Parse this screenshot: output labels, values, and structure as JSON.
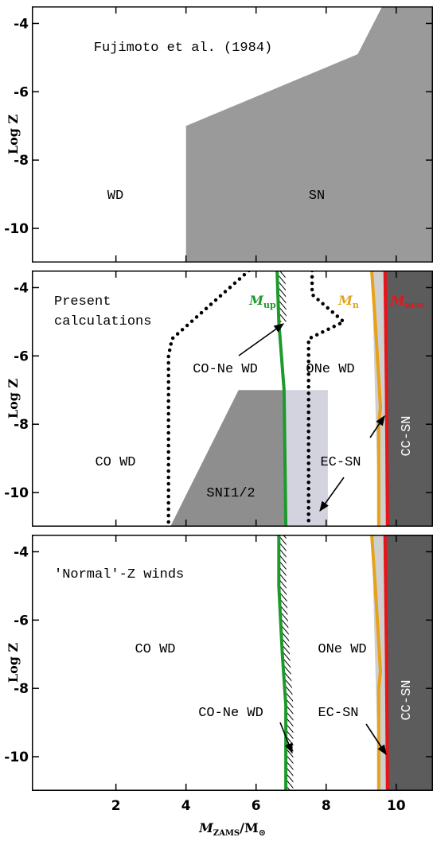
{
  "chart_data": [
    {
      "type": "region",
      "title": "Fujimoto et al. (1984)",
      "ylabel": "Log Z",
      "xlim": [
        -0.4,
        11.05
      ],
      "ylim": [
        -11,
        -3.5
      ],
      "xticks": [
        2,
        4,
        6,
        8,
        10
      ],
      "yticks": [
        -4,
        -6,
        -8,
        -10
      ],
      "xtick_labels": false,
      "regions": [
        {
          "color": "#9a9a9a",
          "x": [
            4,
            4,
            8.9,
            9.6,
            11.05,
            11.05
          ],
          "y": [
            -11,
            -7,
            -4.9,
            -3.5,
            -3.5,
            -11
          ]
        }
      ],
      "lines": [],
      "annotations": [
        "WD",
        "SN"
      ]
    },
    {
      "type": "region",
      "title": [
        "Present",
        "calculations"
      ],
      "ylabel": "Log Z",
      "xlim": [
        -0.4,
        11.05
      ],
      "ylim": [
        -11,
        -3.5
      ],
      "xticks": [
        2,
        4,
        6,
        8,
        10
      ],
      "yticks": [
        -4,
        -6,
        -8,
        -10
      ],
      "xtick_labels": false,
      "regions": [
        {
          "color": "#8e8e8e",
          "x": [
            3.55,
            5.5,
            6.8,
            6.85
          ],
          "y": [
            -11,
            -7,
            -7,
            -11
          ]
        },
        {
          "color": "#d2d3de",
          "x": [
            6.8,
            8.05,
            8.05,
            6.85
          ],
          "y": [
            -7,
            -7,
            -11,
            -11
          ]
        },
        {
          "color": "#cfcfcf",
          "x": [
            9.3,
            9.68,
            9.75,
            9.5
          ],
          "y": [
            -3.5,
            -3.5,
            -11,
            -11
          ]
        },
        {
          "color": "#5c5c5c",
          "x": [
            9.68,
            11.05,
            11.05,
            9.75
          ],
          "y": [
            -3.5,
            -3.5,
            -11,
            -11
          ]
        }
      ],
      "lines": [
        {
          "style": "dotted",
          "color": "#000000",
          "x": [
            5.8,
            3.6,
            3.5,
            3.5
          ],
          "y": [
            -3.5,
            -5.5,
            -6,
            -11
          ]
        },
        {
          "style": "dotted",
          "color": "#000000",
          "x": [
            7.6,
            7.6,
            8.5,
            7.5,
            7.5
          ],
          "y": [
            -3.5,
            -4.2,
            -5.0,
            -5.5,
            -11
          ]
        },
        {
          "style": "hatch",
          "color": "#000000",
          "x": [
            6.74,
            6.78
          ],
          "y": [
            -3.5,
            -5.0
          ]
        },
        {
          "style": "solid",
          "color": "#1e9a2c",
          "label": [
            "M",
            "up"
          ],
          "x": [
            6.6,
            6.65,
            6.8,
            6.85
          ],
          "y": [
            -3.5,
            -5,
            -7,
            -11
          ]
        },
        {
          "style": "solid",
          "color": "#e6a21a",
          "label": [
            "M",
            "n"
          ],
          "x": [
            9.3,
            9.4,
            9.55,
            9.5,
            9.5
          ],
          "y": [
            -3.5,
            -5,
            -7.5,
            -8,
            -11
          ]
        },
        {
          "style": "solid",
          "color": "#e8141a",
          "label": [
            "M",
            "mas"
          ],
          "x": [
            9.68,
            9.72,
            9.75
          ],
          "y": [
            -3.5,
            -7,
            -11
          ]
        }
      ],
      "annotations": [
        "CO-Ne WD",
        "ONe WD",
        "CO WD",
        "EC-SN",
        "SNI1/2",
        "CC-SN"
      ]
    },
    {
      "type": "region",
      "title": "'Normal'-Z winds",
      "ylabel": "Log Z",
      "xlim": [
        -0.4,
        11.05
      ],
      "ylim": [
        -11,
        -3.5
      ],
      "xticks": [
        2,
        4,
        6,
        8,
        10
      ],
      "yticks": [
        -4,
        -6,
        -8,
        -10
      ],
      "xtick_labels": true,
      "xlabel": [
        "M",
        "ZAMS",
        "/M",
        "⊙"
      ],
      "regions": [
        {
          "color": "#cfcfcf",
          "x": [
            9.3,
            9.68,
            9.75,
            9.5
          ],
          "y": [
            -3.5,
            -3.5,
            -11,
            -11
          ]
        },
        {
          "color": "#5c5c5c",
          "x": [
            9.68,
            11.05,
            11.05,
            9.75
          ],
          "y": [
            -3.5,
            -3.5,
            -11,
            -11
          ]
        }
      ],
      "lines": [
        {
          "style": "hatch",
          "color": "#000000",
          "x": [
            6.77,
            6.77,
            6.87,
            6.97,
            6.97
          ],
          "y": [
            -3.5,
            -5,
            -7,
            -8.5,
            -11
          ]
        },
        {
          "style": "solid",
          "color": "#1e9a2c",
          "x": [
            6.65,
            6.65,
            6.75,
            6.85,
            6.85
          ],
          "y": [
            -3.5,
            -5,
            -7,
            -8.5,
            -11
          ]
        },
        {
          "style": "solid",
          "color": "#e6a21a",
          "x": [
            9.3,
            9.4,
            9.55,
            9.5,
            9.5
          ],
          "y": [
            -3.5,
            -5,
            -7.5,
            -8,
            -11
          ]
        },
        {
          "style": "solid",
          "color": "#e8141a",
          "x": [
            9.68,
            9.72,
            9.75
          ],
          "y": [
            -3.5,
            -7,
            -11
          ]
        }
      ],
      "annotations": [
        "CO WD",
        "ONe WD",
        "CO-Ne WD",
        "EC-SN",
        "CC-SN"
      ]
    }
  ]
}
